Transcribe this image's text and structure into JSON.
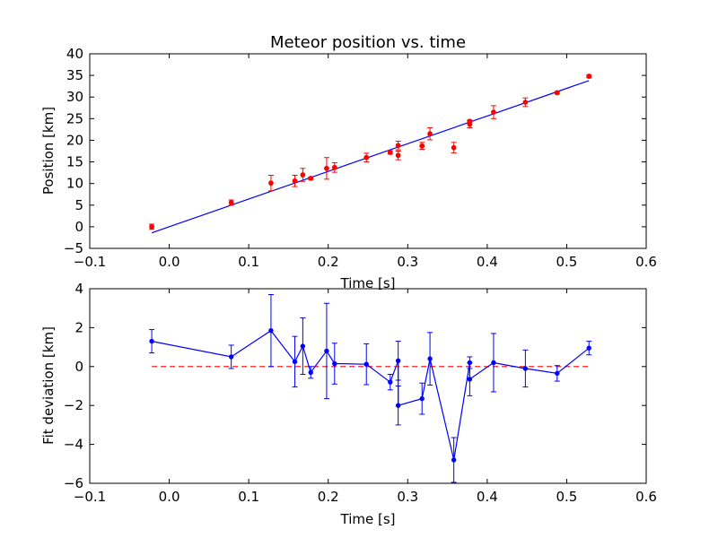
{
  "chart_data": [
    {
      "type": "scatter",
      "title": "Meteor position vs. time",
      "xlabel": "Time [s]",
      "ylabel": "Position [km]",
      "xlim": [
        -0.1,
        0.6
      ],
      "ylim": [
        -5,
        40
      ],
      "xticks": [
        "−0.1",
        "0.0",
        "0.1",
        "0.2",
        "0.3",
        "0.4",
        "0.5",
        "0.6"
      ],
      "yticks": [
        "−5",
        "0",
        "5",
        "10",
        "15",
        "20",
        "25",
        "30",
        "35",
        "40"
      ],
      "grid": false,
      "colors": {
        "points": "#ff0000",
        "fit": "#0000ff"
      },
      "series": [
        {
          "kind": "points_with_errorbars",
          "x": [
            -0.022,
            0.078,
            0.128,
            0.158,
            0.168,
            0.178,
            0.198,
            0.208,
            0.248,
            0.278,
            0.288,
            0.288,
            0.318,
            0.328,
            0.358,
            0.378,
            0.378,
            0.408,
            0.448,
            0.488,
            0.528
          ],
          "y": [
            0.0,
            5.6,
            10.1,
            10.6,
            12.0,
            11.2,
            13.5,
            13.7,
            16.0,
            17.2,
            18.8,
            16.5,
            18.7,
            21.5,
            18.3,
            23.7,
            24.4,
            26.5,
            28.8,
            31.0,
            34.8
          ],
          "err": [
            0.6,
            0.6,
            1.8,
            1.3,
            1.5,
            0.3,
            2.5,
            1.1,
            1.0,
            0.4,
            1.0,
            1.0,
            0.8,
            1.4,
            1.2,
            0.8,
            0.3,
            1.5,
            1.0,
            0.3,
            0.35
          ]
        },
        {
          "kind": "fit_line",
          "x": [
            -0.022,
            0.528
          ],
          "y": [
            -1.4,
            33.8
          ]
        }
      ]
    },
    {
      "type": "line",
      "xlabel": "Time [s]",
      "ylabel": "Fit deviation [km]",
      "xlim": [
        -0.1,
        0.6
      ],
      "ylim": [
        -6,
        4
      ],
      "xticks": [
        "−0.1",
        "0.0",
        "0.1",
        "0.2",
        "0.3",
        "0.4",
        "0.5",
        "0.6"
      ],
      "yticks": [
        "−6",
        "−4",
        "−2",
        "0",
        "2",
        "4"
      ],
      "grid": false,
      "colors": {
        "deviation": "#0000ff",
        "zero": "#ff0000"
      },
      "series": [
        {
          "kind": "line_with_errorbars",
          "x": [
            -0.022,
            0.078,
            0.128,
            0.158,
            0.168,
            0.178,
            0.198,
            0.208,
            0.248,
            0.278,
            0.288,
            0.288,
            0.318,
            0.328,
            0.358,
            0.378,
            0.378,
            0.408,
            0.448,
            0.488,
            0.528
          ],
          "y": [
            1.3,
            0.5,
            1.85,
            0.25,
            1.05,
            -0.3,
            0.8,
            0.15,
            0.12,
            -0.8,
            0.3,
            -2.0,
            -1.65,
            0.4,
            -4.8,
            0.2,
            -0.65,
            0.2,
            -0.1,
            -0.35,
            0.95
          ],
          "err": [
            0.6,
            0.6,
            1.85,
            1.3,
            1.45,
            0.3,
            2.45,
            1.05,
            1.05,
            0.4,
            1.0,
            1.0,
            0.8,
            1.35,
            1.15,
            0.3,
            0.85,
            1.5,
            0.95,
            0.4,
            0.35
          ]
        },
        {
          "kind": "zero_line",
          "x": [
            -0.022,
            0.528
          ],
          "y": [
            0,
            0
          ],
          "dashed": true
        }
      ]
    }
  ]
}
